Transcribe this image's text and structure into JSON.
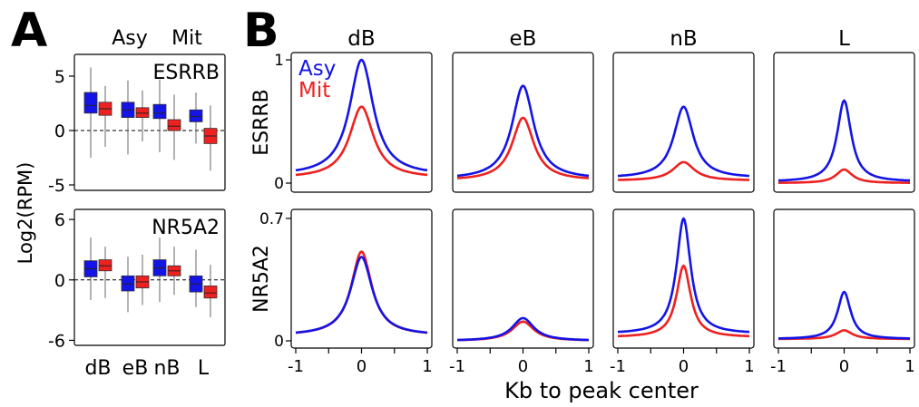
{
  "panels": {
    "a_letter": "A",
    "b_letter": "B"
  },
  "colors": {
    "asy": "#1414e6",
    "mit": "#ee2020"
  },
  "chart_data": [
    {
      "type": "boxplot",
      "panel": "A",
      "ylabel": "Log2(RPM)",
      "categories": [
        "dB",
        "eB",
        "nB",
        "L"
      ],
      "legend": [
        "Asy",
        "Mit"
      ],
      "rows": [
        {
          "label": "ESRRB",
          "ylim": [
            -5.5,
            7
          ],
          "yticks": [
            5,
            0,
            -5
          ],
          "ytick_labels": [
            "5",
            "0",
            "-5"
          ],
          "series": [
            {
              "name": "Asy",
              "boxes": [
                {
                  "min": -2.5,
                  "q1": 1.6,
                  "median": 2.3,
                  "q3": 3.5,
                  "max": 5.8
                },
                {
                  "min": -2.2,
                  "q1": 1.2,
                  "median": 1.9,
                  "q3": 2.6,
                  "max": 4.6
                },
                {
                  "min": -2.0,
                  "q1": 1.1,
                  "median": 1.6,
                  "q3": 2.4,
                  "max": 4.7
                },
                {
                  "min": -1.2,
                  "q1": 0.8,
                  "median": 1.3,
                  "q3": 1.9,
                  "max": 3.5
                }
              ]
            },
            {
              "name": "Mit",
              "boxes": [
                {
                  "min": -1.5,
                  "q1": 1.4,
                  "median": 2.0,
                  "q3": 2.6,
                  "max": 4.1
                },
                {
                  "min": -1.0,
                  "q1": 1.2,
                  "median": 1.6,
                  "q3": 2.1,
                  "max": 3.7
                },
                {
                  "min": -2.7,
                  "q1": 0.0,
                  "median": 0.4,
                  "q3": 1.0,
                  "max": 3.3
                },
                {
                  "min": -3.7,
                  "q1": -1.2,
                  "median": -0.5,
                  "q3": 0.2,
                  "max": 2.3
                }
              ]
            }
          ]
        },
        {
          "label": "NR5A2",
          "ylim": [
            -6.5,
            7
          ],
          "yticks": [
            6,
            0,
            -6
          ],
          "ytick_labels": [
            "6",
            "0",
            "-6"
          ],
          "series": [
            {
              "name": "Asy",
              "boxes": [
                {
                  "min": -2.0,
                  "q1": 0.3,
                  "median": 1.1,
                  "q3": 1.9,
                  "max": 4.2
                },
                {
                  "min": -3.2,
                  "q1": -1.1,
                  "median": -0.4,
                  "q3": 0.4,
                  "max": 2.3
                },
                {
                  "min": -2.2,
                  "q1": 0.4,
                  "median": 1.2,
                  "q3": 2.0,
                  "max": 4.2
                },
                {
                  "min": -2.7,
                  "q1": -1.2,
                  "median": -0.4,
                  "q3": 0.4,
                  "max": 3.0
                }
              ]
            },
            {
              "name": "Mit",
              "boxes": [
                {
                  "min": -1.8,
                  "q1": 0.9,
                  "median": 1.4,
                  "q3": 2.0,
                  "max": 3.3
                },
                {
                  "min": -2.5,
                  "q1": -0.8,
                  "median": -0.2,
                  "q3": 0.4,
                  "max": 2.5
                },
                {
                  "min": -1.5,
                  "q1": 0.4,
                  "median": 0.9,
                  "q3": 1.4,
                  "max": 3.3
                },
                {
                  "min": -3.7,
                  "q1": -1.8,
                  "median": -1.3,
                  "q3": -0.6,
                  "max": 1.5
                }
              ]
            }
          ]
        }
      ]
    },
    {
      "type": "line",
      "panel": "B",
      "xlabel": "Kb to peak center",
      "xlim": [
        -1,
        1
      ],
      "xticks": [
        -1,
        0,
        1
      ],
      "xtick_labels": [
        "-1",
        "0",
        "1"
      ],
      "columns": [
        "dB",
        "eB",
        "nB",
        "L"
      ],
      "legend": [
        "Asy",
        "Mit"
      ],
      "rows": [
        {
          "label": "ESRRB",
          "ylim": [
            0,
            1.0
          ],
          "yticks": [
            0,
            1
          ],
          "ytick_labels": [
            "0",
            "1"
          ],
          "panels": [
            {
              "column": "dB",
              "series": [
                {
                  "name": "Asy",
                  "baseline": 0.06,
                  "peak": 1.0,
                  "width": 0.22
                },
                {
                  "name": "Mit",
                  "baseline": 0.04,
                  "peak": 0.62,
                  "width": 0.22
                }
              ]
            },
            {
              "column": "eB",
              "series": [
                {
                  "name": "Asy",
                  "baseline": 0.03,
                  "peak": 0.79,
                  "width": 0.2
                },
                {
                  "name": "Mit",
                  "baseline": 0.02,
                  "peak": 0.53,
                  "width": 0.2
                }
              ]
            },
            {
              "column": "nB",
              "series": [
                {
                  "name": "Asy",
                  "baseline": 0.04,
                  "peak": 0.62,
                  "width": 0.18
                },
                {
                  "name": "Mit",
                  "baseline": 0.02,
                  "peak": 0.17,
                  "width": 0.2
                }
              ]
            },
            {
              "column": "L",
              "series": [
                {
                  "name": "Asy",
                  "baseline": 0.01,
                  "peak": 0.67,
                  "width": 0.13
                },
                {
                  "name": "Mit",
                  "baseline": 0.0,
                  "peak": 0.11,
                  "width": 0.15
                }
              ]
            }
          ]
        },
        {
          "label": "NR5A2",
          "ylim": [
            0,
            0.7
          ],
          "yticks": [
            0,
            0.7
          ],
          "ytick_labels": [
            "0",
            "0.7"
          ],
          "panels": [
            {
              "column": "dB",
              "series": [
                {
                  "name": "Asy",
                  "baseline": 0.03,
                  "peak": 0.48,
                  "width": 0.2
                },
                {
                  "name": "Mit",
                  "baseline": 0.03,
                  "peak": 0.51,
                  "width": 0.19
                }
              ]
            },
            {
              "column": "eB",
              "series": [
                {
                  "name": "Asy",
                  "baseline": 0.0,
                  "peak": 0.13,
                  "width": 0.2
                },
                {
                  "name": "Mit",
                  "baseline": 0.0,
                  "peak": 0.11,
                  "width": 0.2
                }
              ]
            },
            {
              "column": "nB",
              "series": [
                {
                  "name": "Asy",
                  "baseline": 0.04,
                  "peak": 0.7,
                  "width": 0.13
                },
                {
                  "name": "Mit",
                  "baseline": 0.02,
                  "peak": 0.43,
                  "width": 0.13
                }
              ]
            },
            {
              "column": "L",
              "series": [
                {
                  "name": "Asy",
                  "baseline": 0.01,
                  "peak": 0.28,
                  "width": 0.12
                },
                {
                  "name": "Mit",
                  "baseline": 0.01,
                  "peak": 0.06,
                  "width": 0.15
                }
              ]
            }
          ]
        }
      ]
    }
  ]
}
